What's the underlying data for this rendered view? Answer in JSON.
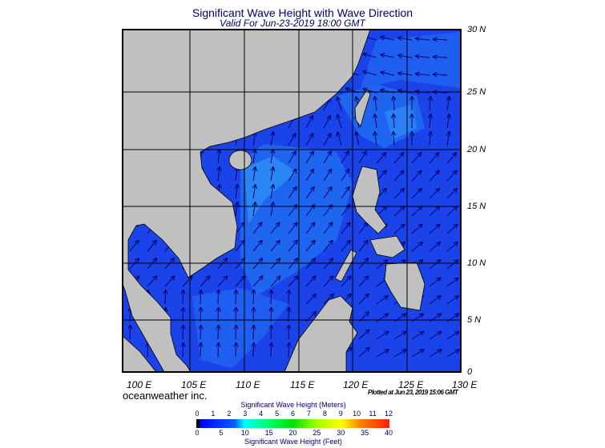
{
  "title": "Significant Wave Height with Wave Direction",
  "valid": "Valid For Jun-23-2019 18:00 GMT",
  "brand": "oceanweather inc.",
  "plotted": "Plotted at Jun 23, 2019 15:06 GMT",
  "map": {
    "lon_labels": [
      "100 E",
      "105 E",
      "110 E",
      "115 E",
      "120 E",
      "125 E",
      "130 E"
    ],
    "lat_labels": [
      "30 N",
      "25 N",
      "20 N",
      "15 N",
      "10 N",
      "5 N",
      "0"
    ],
    "extent": {
      "lon": [
        100,
        130
      ],
      "lat": [
        0,
        30
      ]
    },
    "colors": {
      "land": "#c0c0c0",
      "sea_low": "#1432e6",
      "sea_mid": "#1e64f0",
      "sea_high": "#2a8cf5",
      "arrow": "#00006e"
    },
    "prevailing": "southwest monsoon (arrows toward NE) in south; northeasterly swell in north-east"
  },
  "colorbar": {
    "title_meters": "Significant Wave Height (Meters)",
    "title_feet": "Significant Wave Height (Feet)",
    "meters": [
      "0",
      "1",
      "2",
      "3",
      "4",
      "5",
      "6",
      "7",
      "8",
      "9",
      "10",
      "11",
      "12"
    ],
    "feet": [
      "0",
      "5",
      "10",
      "15",
      "20",
      "25",
      "30",
      "35",
      "40"
    ]
  }
}
